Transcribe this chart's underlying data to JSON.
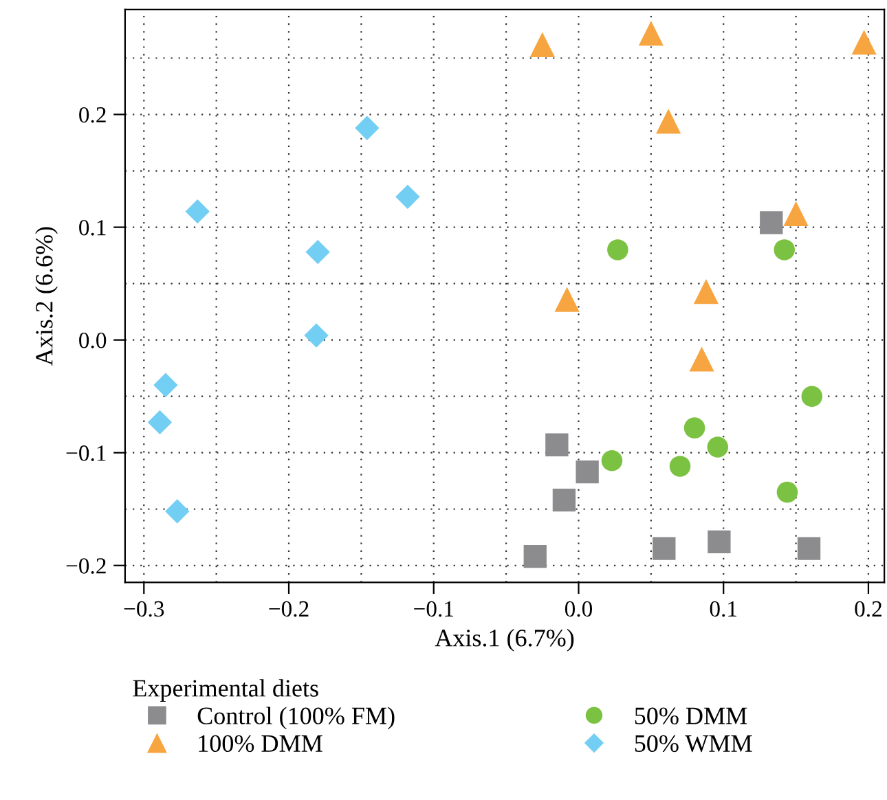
{
  "chart_data": {
    "type": "scatter",
    "xlabel": "Axis.1 (6.7%)",
    "ylabel": "Axis.2 (6.6%)",
    "legend_title": "Experimental diets",
    "xlim": [
      -0.313,
      0.211
    ],
    "ylim": [
      -0.215,
      0.293
    ],
    "xticks": [
      {
        "value": -0.3,
        "label": "−0.3"
      },
      {
        "value": -0.2,
        "label": "−0.2"
      },
      {
        "value": -0.1,
        "label": "−0.1"
      },
      {
        "value": 0,
        "label": "0.0"
      },
      {
        "value": 0.1,
        "label": "0.1"
      },
      {
        "value": 0.2,
        "label": "0.2"
      }
    ],
    "yticks": [
      {
        "value": -0.2,
        "label": "−0.2"
      },
      {
        "value": -0.1,
        "label": "−0.1"
      },
      {
        "value": 0,
        "label": "0.0"
      },
      {
        "value": 0.1,
        "label": "0.1"
      },
      {
        "value": 0.2,
        "label": "0.2"
      }
    ],
    "grid": true,
    "legend": "bottom",
    "series": [
      {
        "name": "Control (100% FM)",
        "color": "#8c8c8e",
        "marker": "square",
        "x": [
          0.133,
          -0.015,
          0.006,
          -0.01,
          -0.03,
          0.059,
          0.097,
          0.159
        ],
        "values": [
          0.104,
          -0.093,
          -0.117,
          -0.142,
          -0.192,
          -0.185,
          -0.179,
          -0.185
        ]
      },
      {
        "name": "100% DMM",
        "color": "#f7a541",
        "marker": "triangle",
        "x": [
          -0.025,
          0.05,
          0.197,
          0.062,
          0.15,
          -0.008,
          0.088,
          0.085
        ],
        "values": [
          0.262,
          0.272,
          0.264,
          0.194,
          0.112,
          0.036,
          0.043,
          -0.017
        ]
      },
      {
        "name": "50% DMM",
        "color": "#7cc242",
        "marker": "circle",
        "x": [
          0.027,
          0.142,
          0.161,
          0.08,
          0.096,
          0.023,
          0.07,
          0.144
        ],
        "values": [
          0.08,
          0.08,
          -0.05,
          -0.078,
          -0.095,
          -0.107,
          -0.112,
          -0.135
        ]
      },
      {
        "name": "50% WMM",
        "color": "#72cef2",
        "marker": "diamond",
        "x": [
          -0.146,
          -0.118,
          -0.263,
          -0.18,
          -0.181,
          -0.285,
          -0.289,
          -0.277
        ],
        "values": [
          0.188,
          0.127,
          0.114,
          0.078,
          0.004,
          -0.04,
          -0.073,
          -0.152
        ]
      }
    ]
  }
}
